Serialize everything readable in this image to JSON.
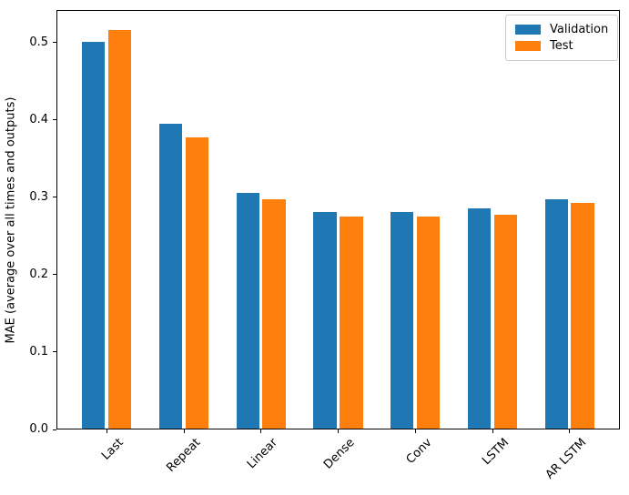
{
  "figure": {
    "background_color": "#ffffff"
  },
  "chart_data": {
    "type": "bar",
    "title": "",
    "xlabel": "",
    "ylabel": "MAE (average over all times and outputs)",
    "categories": [
      "Last",
      "Repeat",
      "Linear",
      "Dense",
      "Conv",
      "LSTM",
      "AR LSTM"
    ],
    "series": [
      {
        "name": "Validation",
        "color": "#1f77b4",
        "values": [
          0.501,
          0.395,
          0.306,
          0.281,
          0.281,
          0.286,
          0.298
        ]
      },
      {
        "name": "Test",
        "color": "#ff7f0e",
        "values": [
          0.516,
          0.377,
          0.298,
          0.275,
          0.275,
          0.277,
          0.293
        ]
      }
    ],
    "ylim": [
      0,
      0.542
    ],
    "yticks": [
      0,
      0.1,
      0.2,
      0.3,
      0.4,
      0.5
    ],
    "ytick_labels": [
      "0.0",
      "0.1",
      "0.2",
      "0.3",
      "0.4",
      "0.5"
    ],
    "xtick_rotation_deg": 45,
    "grid": false,
    "bar_width": 0.3,
    "bar_offset": 0.17,
    "legend": {
      "position": "upper right",
      "entries": [
        "Validation",
        "Test"
      ],
      "border_color": "#cccccc",
      "background": "#ffffff"
    },
    "axes_edge_color": "#000000",
    "text_color": "#000000"
  }
}
